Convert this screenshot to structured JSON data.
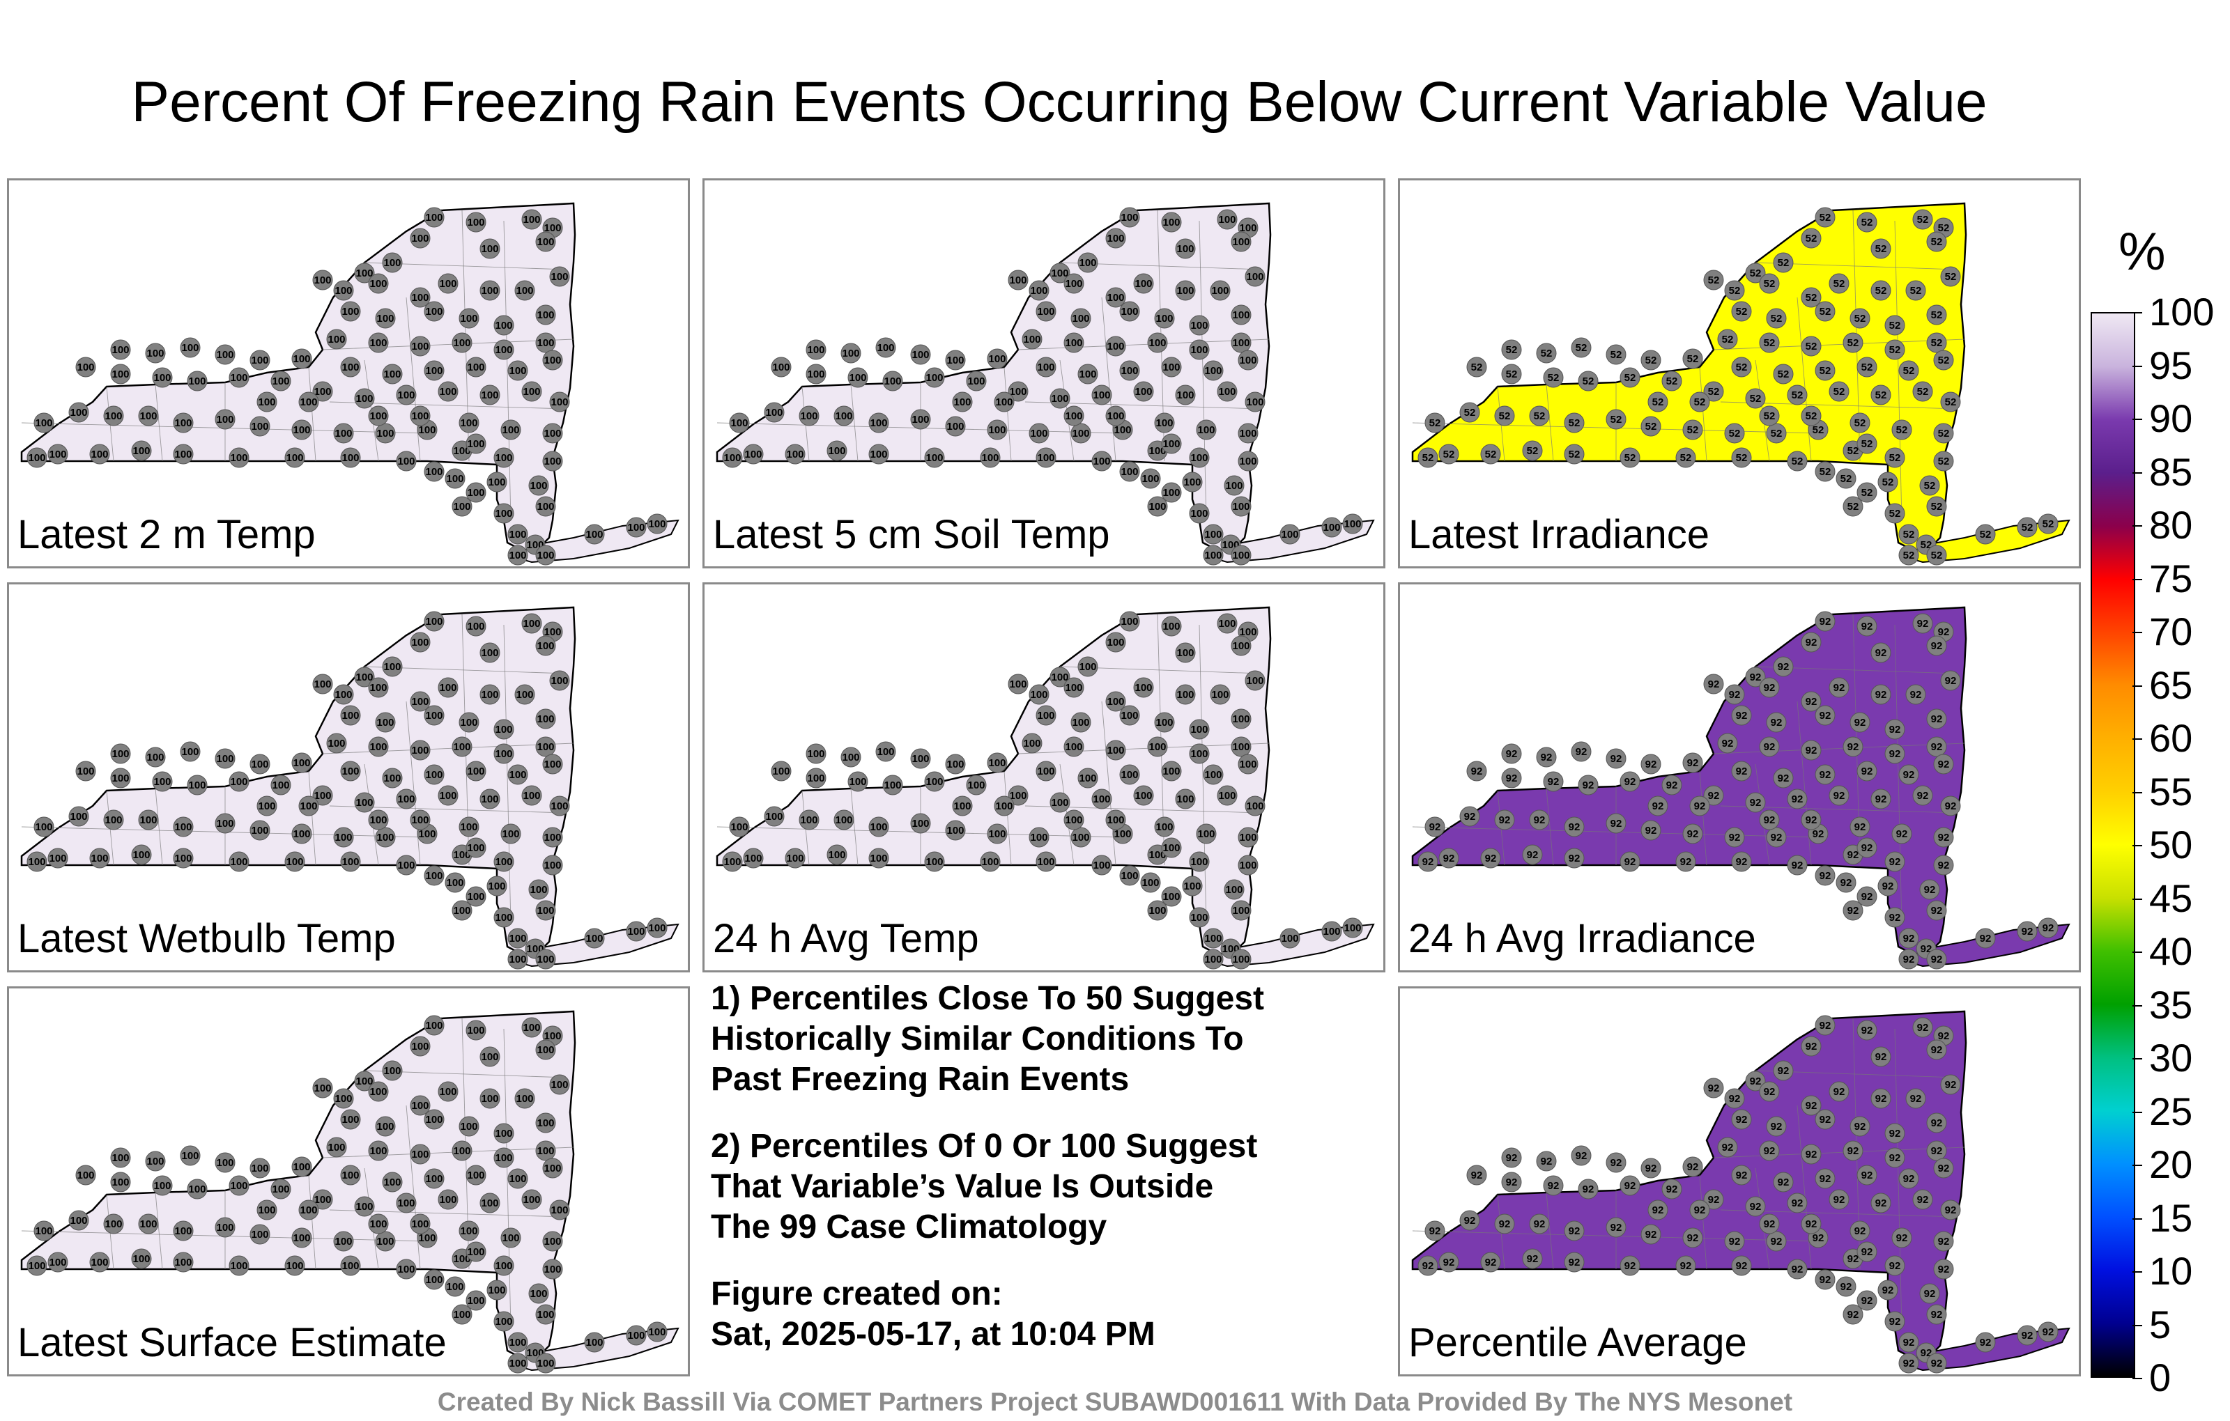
{
  "title": "Percent Of Freezing Rain Events Occurring Below Current Variable Value",
  "panels": [
    {
      "label": "Latest 2 m Temp",
      "fill": "#efe8f3",
      "station_value": "100"
    },
    {
      "label": "Latest 5 cm Soil Temp",
      "fill": "#efe8f3",
      "station_value": "100"
    },
    {
      "label": "Latest Irradiance",
      "fill": "#ffff00",
      "station_value": "52"
    },
    {
      "label": "Latest Wetbulb Temp",
      "fill": "#efe8f3",
      "station_value": "100"
    },
    {
      "label": "24 h Avg Temp",
      "fill": "#efe8f3",
      "station_value": "100"
    },
    {
      "label": "24 h Avg Irradiance",
      "fill": "#7a3aae",
      "station_value": "92"
    },
    {
      "label": "Latest Surface Estimate",
      "fill": "#efe8f3",
      "station_value": "100"
    },
    {
      "label": "Percentile Average",
      "fill": "#7a3aae",
      "station_value": "92"
    }
  ],
  "notes": {
    "n1": [
      "1) Percentiles Close To 50 Suggest",
      "Historically Similar Conditions To",
      "Past Freezing Rain Events"
    ],
    "n2": [
      "2) Percentiles Of 0 Or 100 Suggest",
      "That Variable’s Value Is Outside",
      "The 99 Case Climatology"
    ],
    "n3": [
      "Figure created on:",
      "Sat, 2025-05-17, at 10:04 PM"
    ]
  },
  "credit": "Created By Nick Bassill Via COMET Partners Project SUBAWD001611 With Data Provided By The NYS Mesonet",
  "colorbar": {
    "unit": "%",
    "ticks": [
      "100",
      "95",
      "90",
      "85",
      "80",
      "75",
      "70",
      "65",
      "60",
      "55",
      "50",
      "45",
      "40",
      "35",
      "30",
      "25",
      "20",
      "15",
      "10",
      "5",
      "0"
    ],
    "colors": [
      "#efe8f3",
      "#c9b3dd",
      "#7a3aae",
      "#5b1f8c",
      "#8b004b",
      "#ff0000",
      "#ff4400",
      "#ff8c00",
      "#ffb000",
      "#ffd000",
      "#ffff00",
      "#c8e000",
      "#40c000",
      "#00a000",
      "#00c080",
      "#00d0d0",
      "#0090ff",
      "#0050ff",
      "#0010e0",
      "#000090",
      "#000000"
    ]
  }
}
